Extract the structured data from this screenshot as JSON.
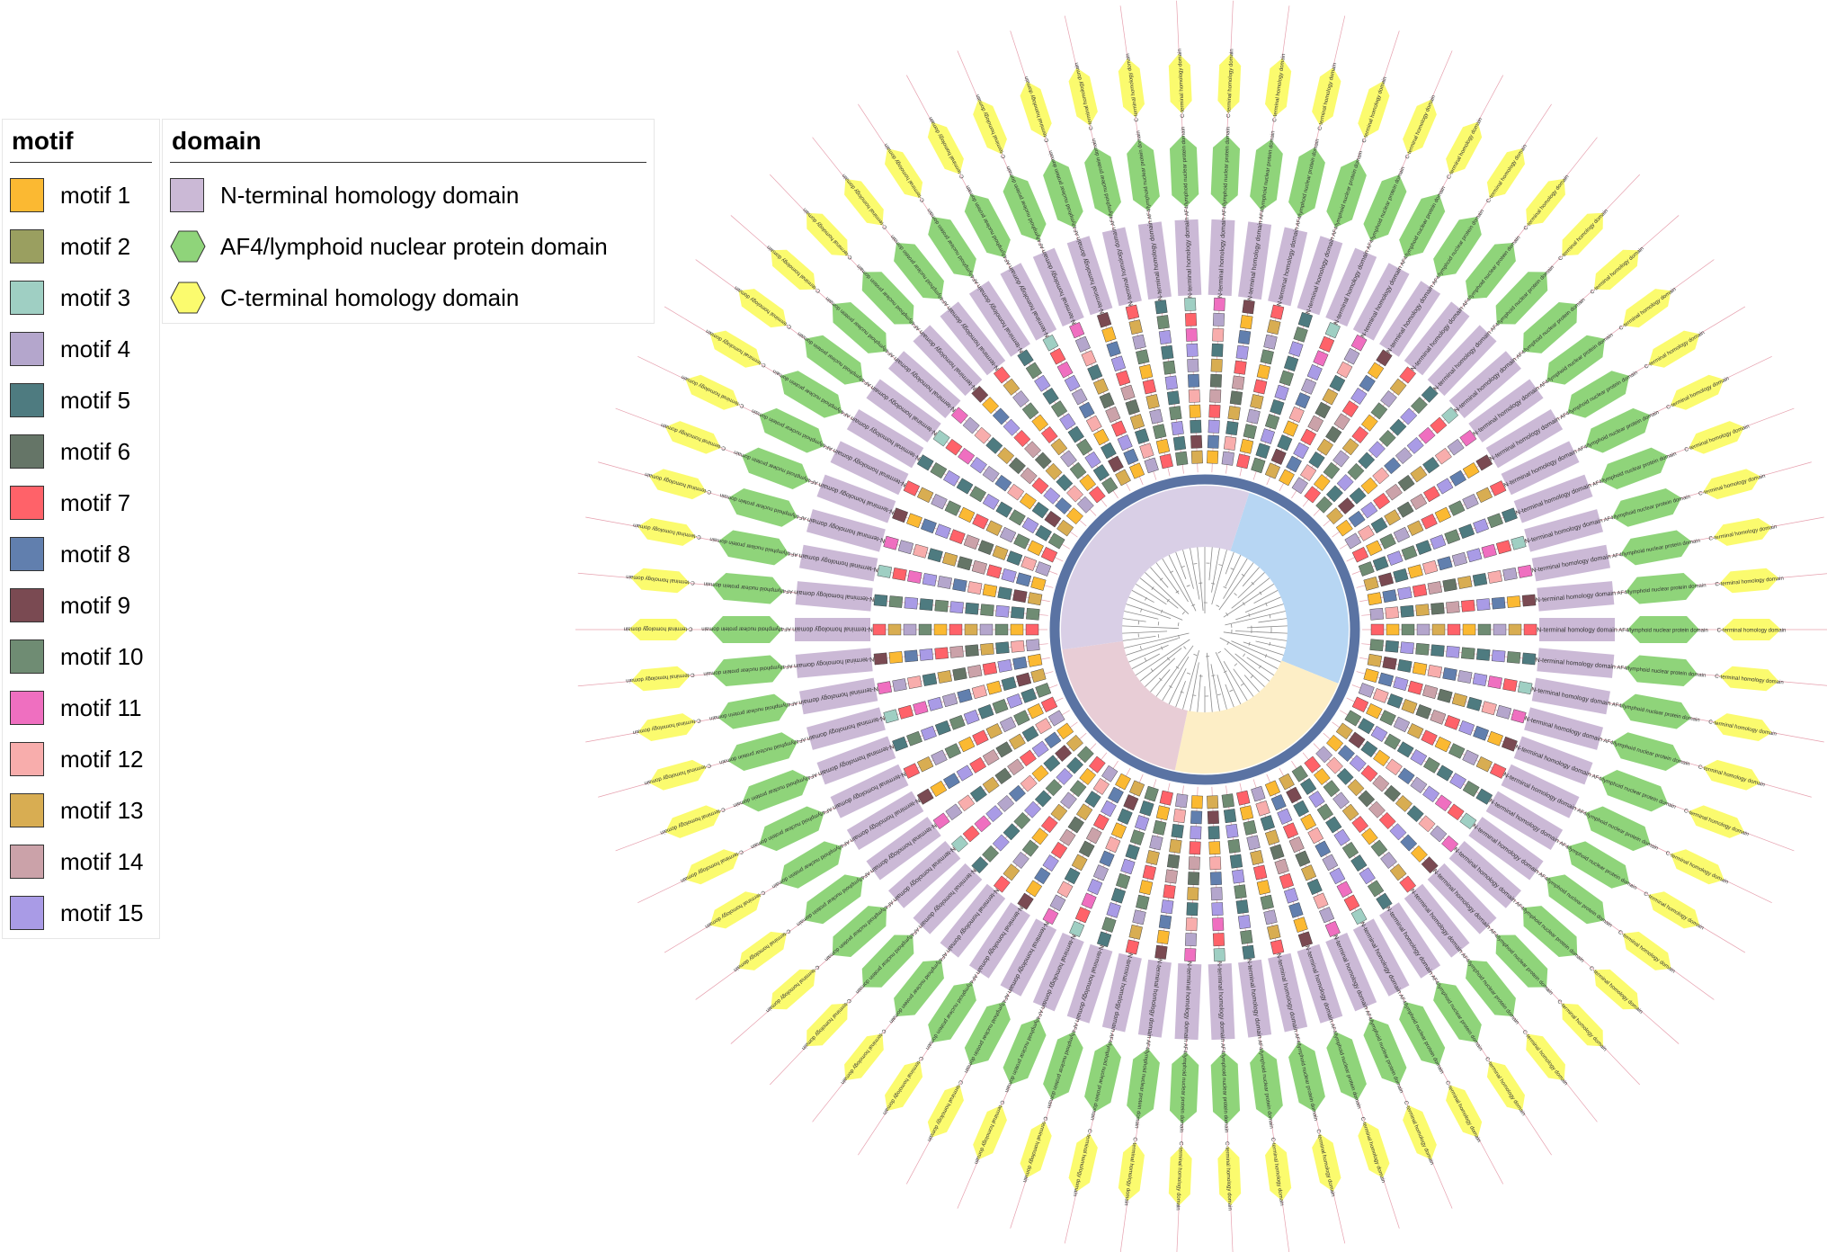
{
  "motif_legend": {
    "title": "motif",
    "items": [
      {
        "label": "motif 1",
        "color": "#fbb932"
      },
      {
        "label": "motif 2",
        "color": "#9a9f60"
      },
      {
        "label": "motif 3",
        "color": "#9fcfc3"
      },
      {
        "label": "motif 4",
        "color": "#b4a6cc"
      },
      {
        "label": "motif 5",
        "color": "#4e7b80"
      },
      {
        "label": "motif 6",
        "color": "#657567"
      },
      {
        "label": "motif 7",
        "color": "#ff6269"
      },
      {
        "label": "motif 8",
        "color": "#617fae"
      },
      {
        "label": "motif 9",
        "color": "#7a4a52"
      },
      {
        "label": "motif 10",
        "color": "#6f8c73"
      },
      {
        "label": "motif 11",
        "color": "#ef6fc0"
      },
      {
        "label": "motif 12",
        "color": "#f8adac"
      },
      {
        "label": "motif 13",
        "color": "#d8ad52"
      },
      {
        "label": "motif 14",
        "color": "#cba2a9"
      },
      {
        "label": "motif 15",
        "color": "#a99be6"
      }
    ]
  },
  "domain_legend": {
    "title": "domain",
    "items": [
      {
        "label": "N-terminal homology domain",
        "color": "#cbb9d6",
        "shape": "rect"
      },
      {
        "label": "AF4/lymphoid nuclear protein domain",
        "color": "#8fd47a",
        "shape": "hexagon"
      },
      {
        "label": "C-terminal homology domain",
        "color": "#fbfb6e",
        "shape": "hexagon"
      }
    ]
  },
  "diagram": {
    "n_tracks": 70,
    "domain_labels": {
      "n_terminal": "N-terminal homology domain",
      "af4": "AF4/lymphoid nuclear protein domain",
      "c_terminal": "C-terminal homology domain"
    },
    "clade_colors": [
      "#b7d6f3",
      "#fdeec6",
      "#e8cdd6",
      "#d9cfe6"
    ],
    "leader_line_color": "#e6a0ae"
  }
}
